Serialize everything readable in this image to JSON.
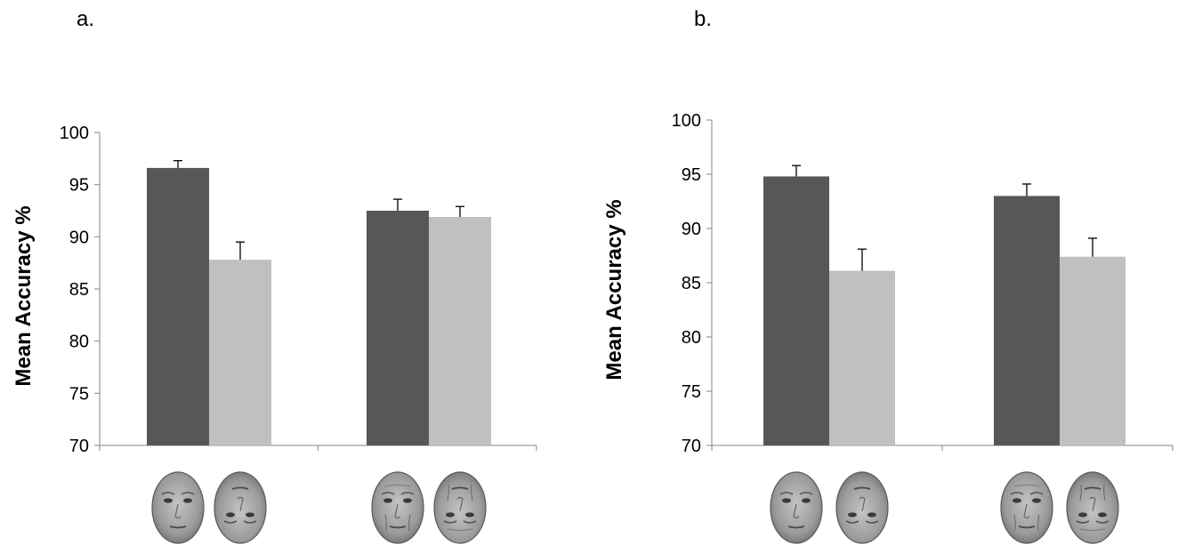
{
  "panels": [
    {
      "label": "a."
    },
    {
      "label": "b."
    }
  ],
  "colors": {
    "dark_bar": "#575757",
    "light_bar": "#c0c0c0",
    "axis": "#868686"
  },
  "chart_data": [
    {
      "type": "bar",
      "panel": "a.",
      "ylabel": "Mean Accuracy %",
      "ylim": [
        70,
        100
      ],
      "yticks": [
        70,
        75,
        80,
        85,
        90,
        95,
        100
      ],
      "categories": [
        "young face (upright / inverted)",
        "old face (upright / inverted)"
      ],
      "series": [
        {
          "color": "#575757",
          "values": [
            96.6,
            92.5
          ],
          "errors": [
            0.7,
            1.1
          ]
        },
        {
          "color": "#c0c0c0",
          "values": [
            87.8,
            91.9
          ],
          "errors": [
            1.7,
            1.0
          ]
        }
      ],
      "grid": false,
      "legend": "none"
    },
    {
      "type": "bar",
      "panel": "b.",
      "ylabel": "Mean Accuracy %",
      "ylim": [
        70,
        100
      ],
      "yticks": [
        70,
        75,
        80,
        85,
        90,
        95,
        100
      ],
      "categories": [
        "young face (upright / inverted)",
        "old face (upright / inverted)"
      ],
      "series": [
        {
          "color": "#575757",
          "values": [
            94.8,
            93.0
          ],
          "errors": [
            1.0,
            1.1
          ]
        },
        {
          "color": "#c0c0c0",
          "values": [
            86.1,
            87.4
          ],
          "errors": [
            2.0,
            1.7
          ]
        }
      ],
      "grid": false,
      "legend": "none"
    }
  ]
}
